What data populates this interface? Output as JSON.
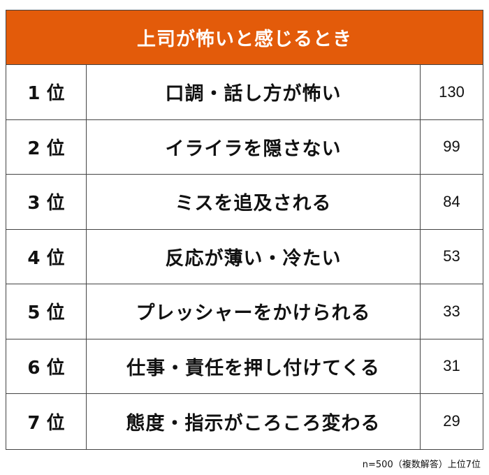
{
  "title": "上司が怖いと感じるとき",
  "footnote": "n=500（複数解答）上位7位",
  "colors": {
    "header_background": "#e35b0a",
    "header_text": "#ffffff",
    "border": "#444444"
  },
  "rows": [
    {
      "rank": "1 位",
      "label": "口調・話し方が怖い",
      "count": "130"
    },
    {
      "rank": "2 位",
      "label": "イライラを隠さない",
      "count": "99"
    },
    {
      "rank": "3 位",
      "label": "ミスを追及される",
      "count": "84"
    },
    {
      "rank": "4 位",
      "label": "反応が薄い・冷たい",
      "count": "53"
    },
    {
      "rank": "5 位",
      "label": "プレッシャーをかけられる",
      "count": "33"
    },
    {
      "rank": "6 位",
      "label": "仕事・責任を押し付けてくる",
      "count": "31"
    },
    {
      "rank": "7 位",
      "label": "態度・指示がころころ変わる",
      "count": "29"
    }
  ],
  "chart_data": {
    "type": "table",
    "title": "上司が怖いと感じるとき",
    "columns": [
      "",
      "",
      ""
    ],
    "categories": [
      "口調・話し方が怖い",
      "イライラを隠さない",
      "ミスを追及される",
      "反応が薄い・冷たい",
      "プレッシャーをかけられる",
      "仕事・責任を押し付けてくる",
      "態度・指示がころころ変わる"
    ],
    "ranks": [
      "1 位",
      "2 位",
      "3 位",
      "4 位",
      "5 位",
      "6 位",
      "7 位"
    ],
    "values": [
      130,
      99,
      84,
      53,
      33,
      31,
      29
    ],
    "note": "n=500（複数解答）上位7位"
  }
}
